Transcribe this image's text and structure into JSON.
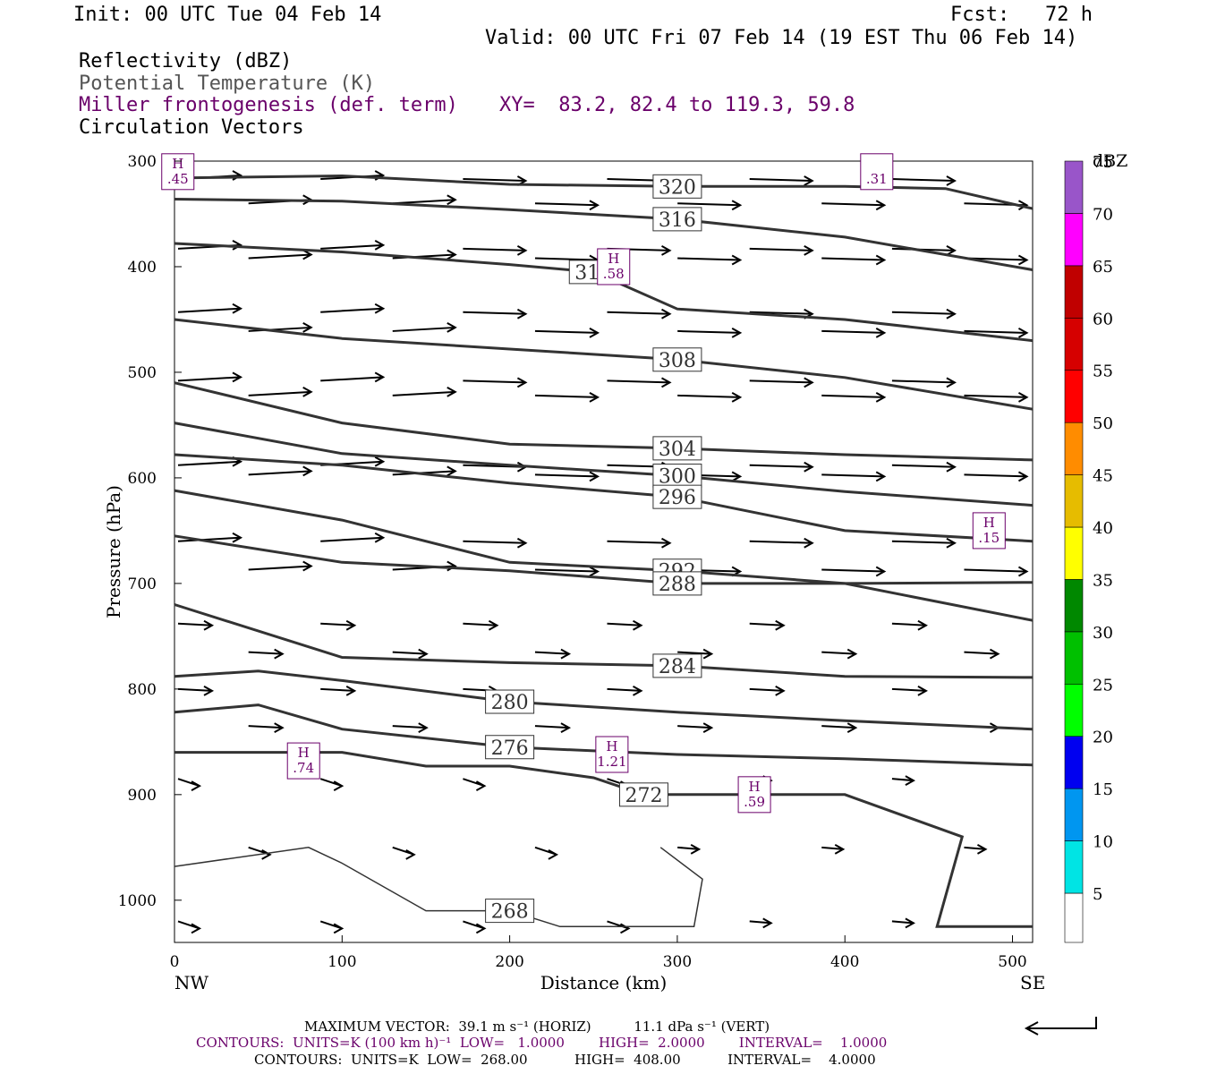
{
  "header": {
    "init": "Init: 00 UTC Tue 04 Feb 14",
    "fcst": "Fcst:   72 h",
    "valid": "Valid: 00 UTC Fri 07 Feb 14 (19 EST Thu 06 Feb 14)",
    "legend_reflectivity": "Reflectivity (dBZ)",
    "legend_theta": "Potential Temperature (K)",
    "legend_frontogenesis": "Miller frontogenesis (def. term)",
    "xy": "XY=  83.2, 82.4 to 119.3, 59.8",
    "legend_vectors": "Circulation Vectors"
  },
  "footer": {
    "line1": "MAXIMUM VECTOR:  39.1 m s⁻¹ (HORIZ)          11.1 dPa s⁻¹ (VERT)",
    "line2": "CONTOURS:  UNITS=K (100 km h)⁻¹  LOW=   1.0000        HIGH=  2.0000        INTERVAL=    1.0000",
    "line3": "CONTOURS:  UNITS=K  LOW=  268.00           HIGH=  408.00           INTERVAL=    4.0000"
  },
  "colors": {
    "frontogenesis": "#6a006a",
    "theta_contour": "#333333",
    "colorbar": [
      "#ffffff",
      "#00e4e4",
      "#0096f0",
      "#0000f0",
      "#00ff00",
      "#00c000",
      "#008800",
      "#ffff00",
      "#e6bc00",
      "#ff8c00",
      "#ff0000",
      "#d60000",
      "#c00000",
      "#ff00ff",
      "#9955c9"
    ]
  },
  "chart_data": {
    "type": "cross-section",
    "xlabel": "Distance (km)",
    "ylabel": "Pressure (hPa)",
    "xlim": [
      0,
      512
    ],
    "ylim": [
      1040,
      300
    ],
    "x_ticks": [
      "0",
      "100",
      "200",
      "300",
      "400",
      "500"
    ],
    "x_tick_values": [
      0,
      100,
      200,
      300,
      400,
      500
    ],
    "x_end_labels": {
      "left": "NW",
      "right": "SE"
    },
    "y_ticks": [
      "300",
      "400",
      "500",
      "600",
      "700",
      "800",
      "900",
      "1000"
    ],
    "y_tick_values": [
      300,
      400,
      500,
      600,
      700,
      800,
      900,
      1000
    ],
    "colorbar": {
      "title": "dBZ",
      "labels": [
        "5",
        "10",
        "15",
        "20",
        "25",
        "30",
        "35",
        "40",
        "45",
        "50",
        "55",
        "60",
        "65",
        "70",
        "75"
      ],
      "values": [
        5,
        10,
        15,
        20,
        25,
        30,
        35,
        40,
        45,
        50,
        55,
        60,
        65,
        70,
        75
      ]
    },
    "theta_contours": [
      {
        "value": 320,
        "label": "320",
        "points": [
          [
            0,
            316
          ],
          [
            100,
            314
          ],
          [
            200,
            322
          ],
          [
            300,
            324
          ],
          [
            400,
            324
          ],
          [
            460,
            326
          ],
          [
            512,
            345
          ]
        ]
      },
      {
        "value": 316,
        "label": "316",
        "points": [
          [
            0,
            336
          ],
          [
            100,
            338
          ],
          [
            200,
            346
          ],
          [
            300,
            355
          ],
          [
            400,
            372
          ],
          [
            512,
            403
          ]
        ]
      },
      {
        "value": 312,
        "label": "312",
        "points": [
          [
            0,
            378
          ],
          [
            100,
            386
          ],
          [
            200,
            398
          ],
          [
            250,
            405
          ],
          [
            300,
            440
          ],
          [
            400,
            450
          ],
          [
            512,
            470
          ]
        ]
      },
      {
        "value": 308,
        "label": "308",
        "points": [
          [
            0,
            450
          ],
          [
            100,
            468
          ],
          [
            200,
            478
          ],
          [
            300,
            488
          ],
          [
            400,
            505
          ],
          [
            512,
            535
          ]
        ]
      },
      {
        "value": 304,
        "label": "304",
        "points": [
          [
            0,
            510
          ],
          [
            100,
            548
          ],
          [
            200,
            568
          ],
          [
            300,
            572
          ],
          [
            400,
            578
          ],
          [
            512,
            583
          ]
        ]
      },
      {
        "value": 300,
        "label": "300",
        "points": [
          [
            0,
            548
          ],
          [
            100,
            577
          ],
          [
            200,
            588
          ],
          [
            300,
            598
          ],
          [
            400,
            613
          ],
          [
            512,
            626
          ]
        ]
      },
      {
        "value": 296,
        "label": "296",
        "points": [
          [
            0,
            578
          ],
          [
            100,
            588
          ],
          [
            200,
            605
          ],
          [
            300,
            618
          ],
          [
            400,
            650
          ],
          [
            512,
            660
          ]
        ]
      },
      {
        "value": 292,
        "label": "292",
        "points": [
          [
            0,
            612
          ],
          [
            100,
            640
          ],
          [
            200,
            680
          ],
          [
            300,
            688
          ],
          [
            400,
            700
          ],
          [
            512,
            699
          ]
        ]
      },
      {
        "value": 288,
        "label": "288",
        "points": [
          [
            0,
            655
          ],
          [
            100,
            680
          ],
          [
            200,
            688
          ],
          [
            300,
            700
          ],
          [
            400,
            700
          ],
          [
            512,
            735
          ]
        ]
      },
      {
        "value": 284,
        "label": "284",
        "points": [
          [
            0,
            720
          ],
          [
            100,
            770
          ],
          [
            200,
            775
          ],
          [
            300,
            778
          ],
          [
            400,
            788
          ],
          [
            512,
            789
          ]
        ]
      },
      {
        "value": 280,
        "label": "280",
        "points": [
          [
            0,
            788
          ],
          [
            50,
            783
          ],
          [
            100,
            792
          ],
          [
            200,
            812
          ],
          [
            300,
            822
          ],
          [
            400,
            830
          ],
          [
            512,
            838
          ]
        ]
      },
      {
        "value": 276,
        "label": "276",
        "points": [
          [
            0,
            822
          ],
          [
            50,
            815
          ],
          [
            100,
            838
          ],
          [
            200,
            855
          ],
          [
            300,
            862
          ],
          [
            400,
            866
          ],
          [
            512,
            872
          ]
        ]
      },
      {
        "value": 272,
        "label": "272",
        "points": [
          [
            0,
            860
          ],
          [
            100,
            860
          ],
          [
            150,
            873
          ],
          [
            200,
            873
          ],
          [
            250,
            884
          ],
          [
            280,
            900
          ],
          [
            400,
            900
          ],
          [
            470,
            940
          ],
          [
            455,
            1025
          ],
          [
            512,
            1025
          ]
        ]
      },
      {
        "value": 268,
        "label": "268",
        "points": [
          [
            0,
            968
          ],
          [
            80,
            950
          ],
          [
            100,
            965
          ],
          [
            150,
            1010
          ],
          [
            200,
            1010
          ],
          [
            230,
            1025
          ],
          [
            310,
            1025
          ],
          [
            315,
            980
          ],
          [
            290,
            950
          ]
        ]
      }
    ],
    "frontogenesis_maxima": [
      {
        "label": "H",
        "value": ".45",
        "x": 2,
        "p": 310
      },
      {
        "label": "H",
        "value": ".58",
        "x": 262,
        "p": 400
      },
      {
        "label": "H",
        "value": ".15",
        "x": 486,
        "p": 650
      },
      {
        "label": "H",
        "value": ".74",
        "x": 77,
        "p": 868
      },
      {
        "label": "H",
        "value": "1.21",
        "x": 261,
        "p": 862
      },
      {
        "label": "H",
        "value": ".59",
        "x": 346,
        "p": 900
      },
      {
        "label": "",
        "value": ".31",
        "x": 419,
        "p": 310
      }
    ],
    "reflectivity": "none",
    "max_vector": {
      "horiz": "39.1 m s⁻¹",
      "vert": "11.1 dPa s⁻¹"
    }
  }
}
